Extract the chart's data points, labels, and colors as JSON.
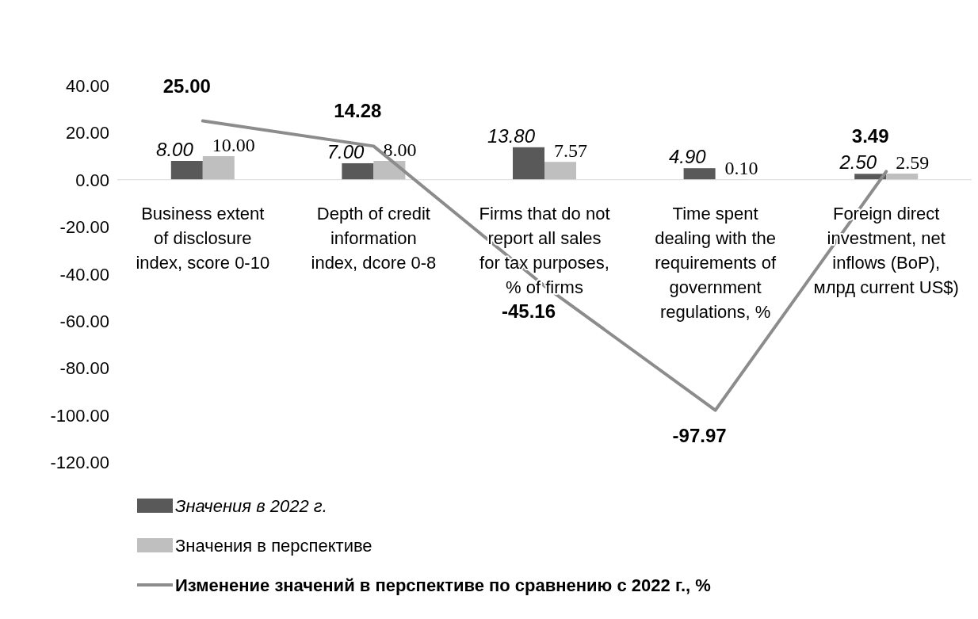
{
  "chart_data": {
    "type": "bar",
    "categories": [
      "Business extent of disclosure index, score 0-10",
      "Depth of credit information index, dcore 0-8",
      "Firms that do not report all sales for tax purposes, % of firms",
      "Time spent dealing with the requirements of government regulations, %",
      "Foreign direct investment, net inflows (BoP), млрд current US$)"
    ],
    "series": [
      {
        "name": "Значения в 2022 г.",
        "color": "#595959",
        "values": [
          8.0,
          7.0,
          13.8,
          4.9,
          2.5
        ],
        "value_labels": [
          "8.00",
          "7.00",
          "13.80",
          "4.90",
          "2.50"
        ]
      },
      {
        "name": "Значения в перспективе",
        "color": "#bfbfbf",
        "values": [
          10.0,
          8.0,
          7.57,
          0.1,
          2.59
        ],
        "value_labels": [
          "10.00",
          "8.00",
          "7.57",
          "0.10",
          "2.59"
        ]
      },
      {
        "name": "Изменение значений в перспективе по сравнению с 2022 г., %",
        "type": "line",
        "color": "#8c8c8c",
        "values": [
          25.0,
          14.28,
          -45.16,
          -97.97,
          3.49
        ],
        "value_labels": [
          "25.00",
          "14.28",
          "-45.16",
          "-97.97",
          "3.49"
        ]
      }
    ],
    "ylim": [
      -120,
      40
    ],
    "yticks": [
      {
        "value": -120,
        "label": "-120.00"
      },
      {
        "value": -100,
        "label": "-100.00"
      },
      {
        "value": -80,
        "label": "-80.00"
      },
      {
        "value": -60,
        "label": "-60.00"
      },
      {
        "value": -40,
        "label": "-40.00"
      },
      {
        "value": -20,
        "label": "-20.00"
      },
      {
        "value": 0,
        "label": "0.00"
      },
      {
        "value": 20,
        "label": "20.00"
      },
      {
        "value": 40,
        "label": "40.00"
      }
    ],
    "grid": false,
    "legend": "bottom",
    "marker": "none",
    "line_style": "solid"
  }
}
